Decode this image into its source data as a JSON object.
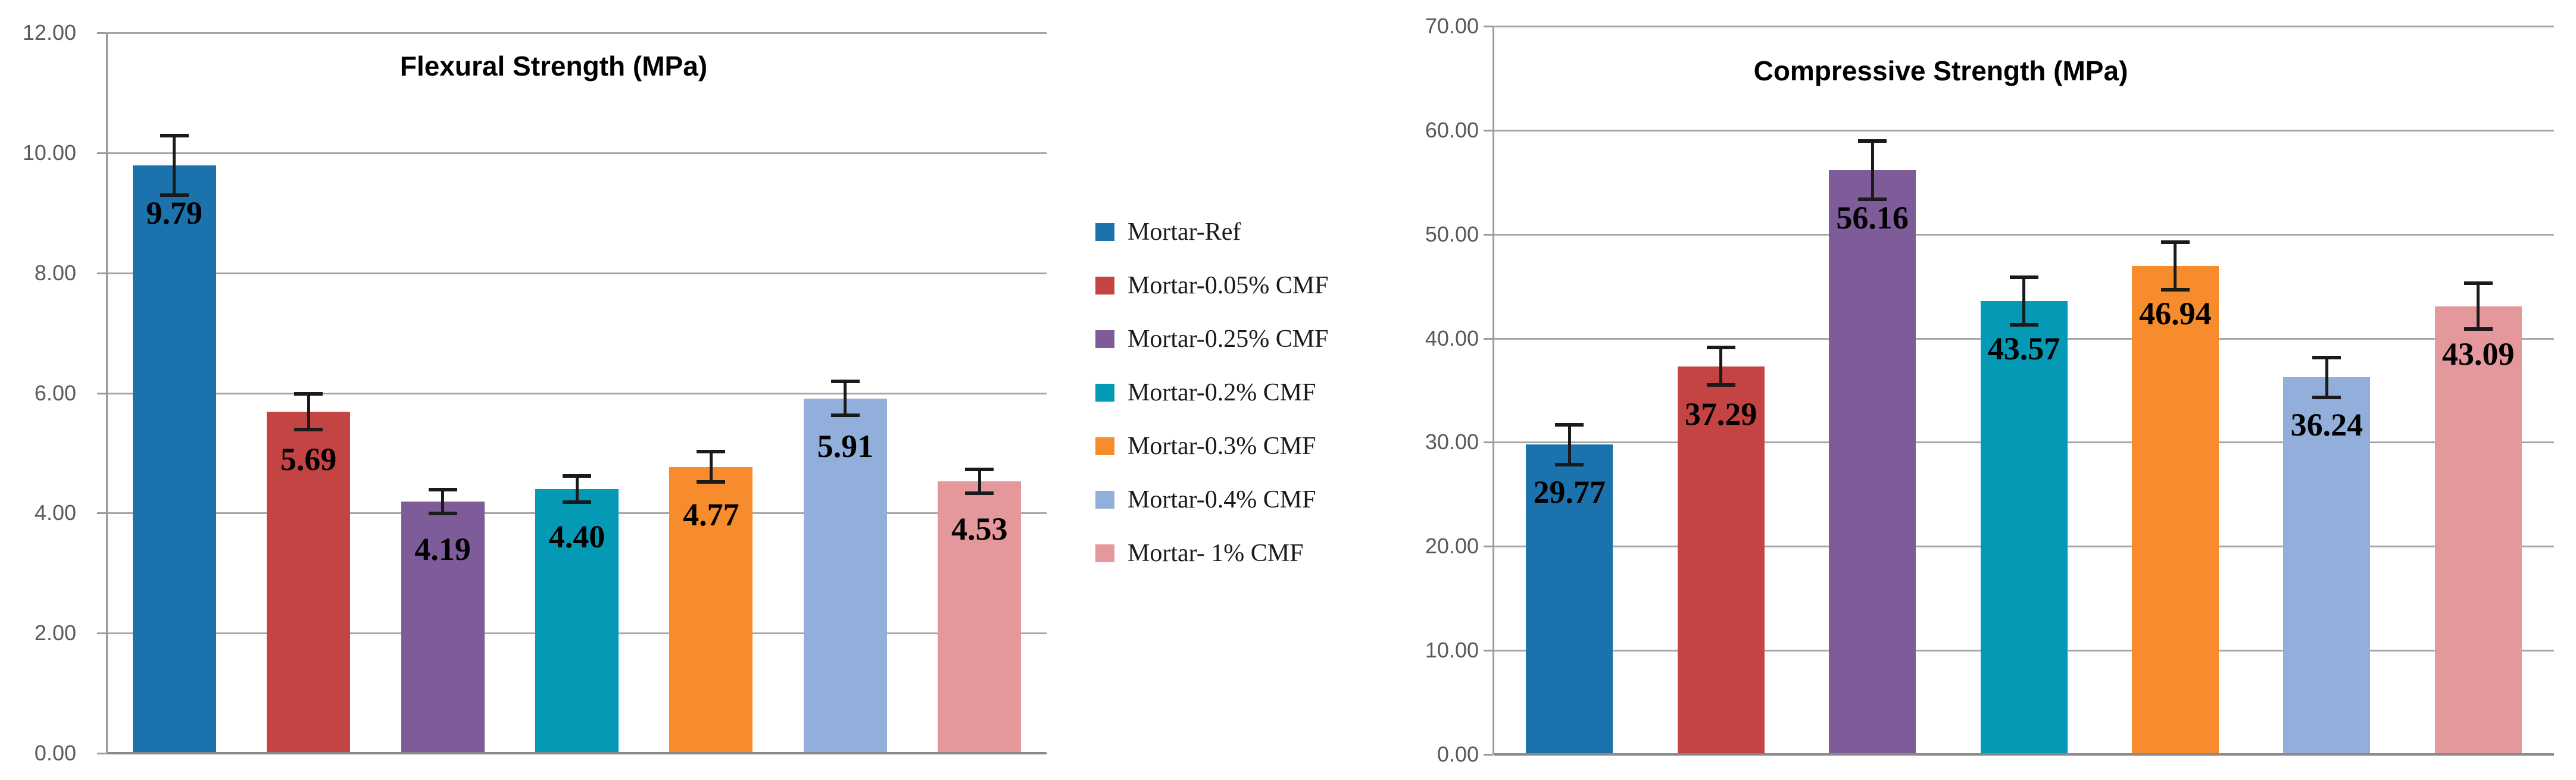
{
  "figure": {
    "background": "#ffffff"
  },
  "styles": {
    "grid_color": "#a6a6a6",
    "baseline_color": "#898989",
    "axis_color": "#9b9b9b",
    "tick_label_color": "#595959",
    "error_bar_color": "#1a1a1a",
    "title_color": "#000000",
    "data_label_color": "#000000",
    "legend_text_color": "#1a1a1a"
  },
  "series_colors": [
    "#1C72AD",
    "#C44444",
    "#7E5B99",
    "#0499B4",
    "#F78C2D",
    "#92AFDB",
    "#E5989B"
  ],
  "legend": {
    "position": "center-between-charts",
    "items": [
      {
        "label": "Mortar-Ref",
        "color": "#1C72AD"
      },
      {
        "label": "Mortar-0.05% CMF",
        "color": "#C44444"
      },
      {
        "label": "Mortar-0.25% CMF",
        "color": "#7E5B99"
      },
      {
        "label": "Mortar-0.2% CMF",
        "color": "#0499B4"
      },
      {
        "label": "Mortar-0.3% CMF",
        "color": "#F78C2D"
      },
      {
        "label": "Mortar-0.4% CMF",
        "color": "#92AFDB"
      },
      {
        "label": "Mortar- 1% CMF",
        "color": "#E5989B"
      }
    ]
  },
  "chart_data": [
    {
      "type": "bar",
      "title": "Flexural Strength (MPa)",
      "categories": [
        "Mortar-Ref",
        "Mortar-0.05% CMF",
        "Mortar-0.25% CMF",
        "Mortar-0.2% CMF",
        "Mortar-0.3% CMF",
        "Mortar-0.4% CMF",
        "Mortar- 1% CMF"
      ],
      "values": [
        9.79,
        5.69,
        4.19,
        4.4,
        4.77,
        5.91,
        4.53
      ],
      "errors": [
        0.5,
        0.3,
        0.2,
        0.22,
        0.25,
        0.28,
        0.2
      ],
      "bar_colors": [
        "#1C72AD",
        "#C44444",
        "#7E5B99",
        "#0499B4",
        "#F78C2D",
        "#92AFDB",
        "#E5989B"
      ],
      "xlabel": "",
      "ylabel": "",
      "ylim": [
        0,
        12
      ],
      "ystep": 2,
      "tick_decimals": 2,
      "value_label_decimals": 2,
      "grid": true,
      "error_bars": true,
      "x_tick_labels": "none"
    },
    {
      "type": "bar",
      "title": "Compressive Strength (MPa)",
      "categories": [
        "Mortar-Ref",
        "Mortar-0.05% CMF",
        "Mortar-0.25% CMF",
        "Mortar-0.2% CMF",
        "Mortar-0.3% CMF",
        "Mortar-0.4% CMF",
        "Mortar- 1% CMF"
      ],
      "values": [
        29.77,
        37.29,
        56.16,
        43.57,
        46.94,
        36.24,
        43.09
      ],
      "errors": [
        1.9,
        1.8,
        2.8,
        2.3,
        2.3,
        1.9,
        2.2
      ],
      "bar_colors": [
        "#1C72AD",
        "#C44444",
        "#7E5B99",
        "#0499B4",
        "#F78C2D",
        "#92AFDB",
        "#E5989B"
      ],
      "xlabel": "",
      "ylabel": "",
      "ylim": [
        0,
        70
      ],
      "ystep": 10,
      "tick_decimals": 2,
      "value_label_decimals": 2,
      "grid": true,
      "error_bars": true,
      "x_tick_labels": "none"
    }
  ]
}
